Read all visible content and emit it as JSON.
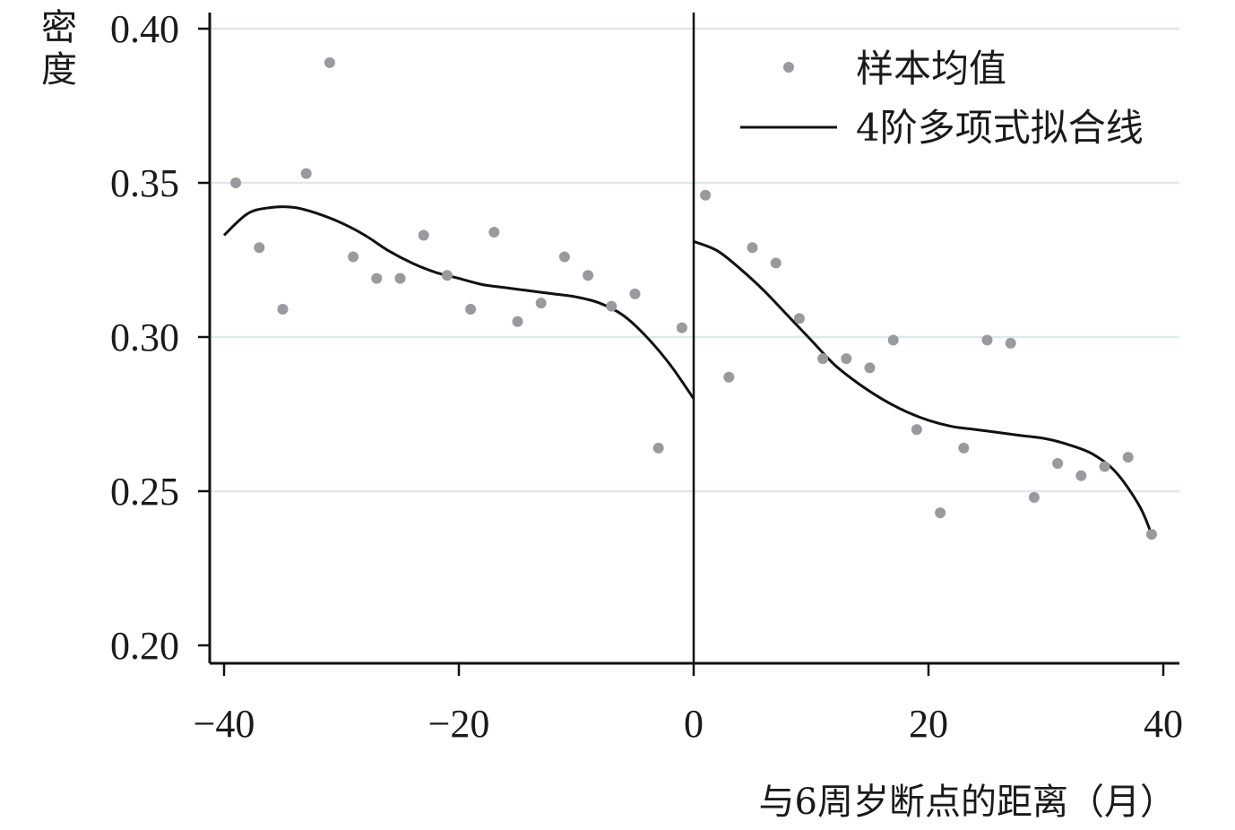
{
  "chart_data": {
    "type": "scatter",
    "title": "",
    "xlabel": "与6周岁断点的距离（月）",
    "ylabel": "密度",
    "xlim": [
      -41,
      41
    ],
    "ylim": [
      0.195,
      0.405
    ],
    "x_ticks": [
      -40,
      -20,
      0,
      20,
      40
    ],
    "x_tick_labels": [
      "−40",
      "−20",
      "0",
      "20",
      "40"
    ],
    "y_ticks": [
      0.2,
      0.25,
      0.3,
      0.35,
      0.4
    ],
    "y_tick_labels": [
      "0.20",
      "0.25",
      "0.30",
      "0.35",
      "0.40"
    ],
    "grid": "horizontal",
    "cutoff_x": 0,
    "legend_position": "top-right",
    "colors": {
      "points": "#9a9a9e",
      "line": "#111111",
      "grid": "#dfe9e9",
      "axis": "#111111"
    },
    "series": [
      {
        "name": "样本均值",
        "kind": "points",
        "points": [
          [
            -39,
            0.35
          ],
          [
            -37,
            0.329
          ],
          [
            -35,
            0.309
          ],
          [
            -33,
            0.353
          ],
          [
            -31,
            0.389
          ],
          [
            -29,
            0.326
          ],
          [
            -27,
            0.319
          ],
          [
            -25,
            0.319
          ],
          [
            -23,
            0.333
          ],
          [
            -21,
            0.32
          ],
          [
            -19,
            0.309
          ],
          [
            -17,
            0.334
          ],
          [
            -15,
            0.305
          ],
          [
            -13,
            0.311
          ],
          [
            -11,
            0.326
          ],
          [
            -9,
            0.32
          ],
          [
            -7,
            0.31
          ],
          [
            -5,
            0.314
          ],
          [
            -3,
            0.264
          ],
          [
            -1,
            0.303
          ],
          [
            1,
            0.346
          ],
          [
            3,
            0.287
          ],
          [
            5,
            0.329
          ],
          [
            7,
            0.324
          ],
          [
            9,
            0.306
          ],
          [
            11,
            0.293
          ],
          [
            13,
            0.293
          ],
          [
            15,
            0.29
          ],
          [
            17,
            0.299
          ],
          [
            19,
            0.27
          ],
          [
            21,
            0.243
          ],
          [
            23,
            0.264
          ],
          [
            25,
            0.299
          ],
          [
            27,
            0.298
          ],
          [
            29,
            0.248
          ],
          [
            31,
            0.259
          ],
          [
            33,
            0.255
          ],
          [
            35,
            0.258
          ],
          [
            37,
            0.261
          ],
          [
            39,
            0.236
          ]
        ]
      },
      {
        "name": "4阶多项式拟合线",
        "kind": "line",
        "segments": [
          [
            [
              -40,
              0.333
            ],
            [
              -38,
              0.34
            ],
            [
              -36,
              0.342
            ],
            [
              -34,
              0.342
            ],
            [
              -32,
              0.34
            ],
            [
              -30,
              0.337
            ],
            [
              -28,
              0.333
            ],
            [
              -26,
              0.328
            ],
            [
              -24,
              0.324
            ],
            [
              -22,
              0.321
            ],
            [
              -20,
              0.319
            ],
            [
              -18,
              0.317
            ],
            [
              -16,
              0.316
            ],
            [
              -14,
              0.315
            ],
            [
              -12,
              0.314
            ],
            [
              -10,
              0.313
            ],
            [
              -8,
              0.311
            ],
            [
              -6,
              0.307
            ],
            [
              -4,
              0.3
            ],
            [
              -2,
              0.291
            ],
            [
              0,
              0.28
            ]
          ],
          [
            [
              0,
              0.331
            ],
            [
              2,
              0.328
            ],
            [
              4,
              0.322
            ],
            [
              6,
              0.315
            ],
            [
              8,
              0.307
            ],
            [
              10,
              0.299
            ],
            [
              12,
              0.291
            ],
            [
              14,
              0.285
            ],
            [
              16,
              0.28
            ],
            [
              18,
              0.276
            ],
            [
              20,
              0.273
            ],
            [
              22,
              0.271
            ],
            [
              24,
              0.27
            ],
            [
              26,
              0.269
            ],
            [
              28,
              0.268
            ],
            [
              30,
              0.267
            ],
            [
              32,
              0.265
            ],
            [
              34,
              0.262
            ],
            [
              36,
              0.256
            ],
            [
              38,
              0.245
            ],
            [
              39,
              0.236
            ]
          ]
        ]
      }
    ]
  }
}
